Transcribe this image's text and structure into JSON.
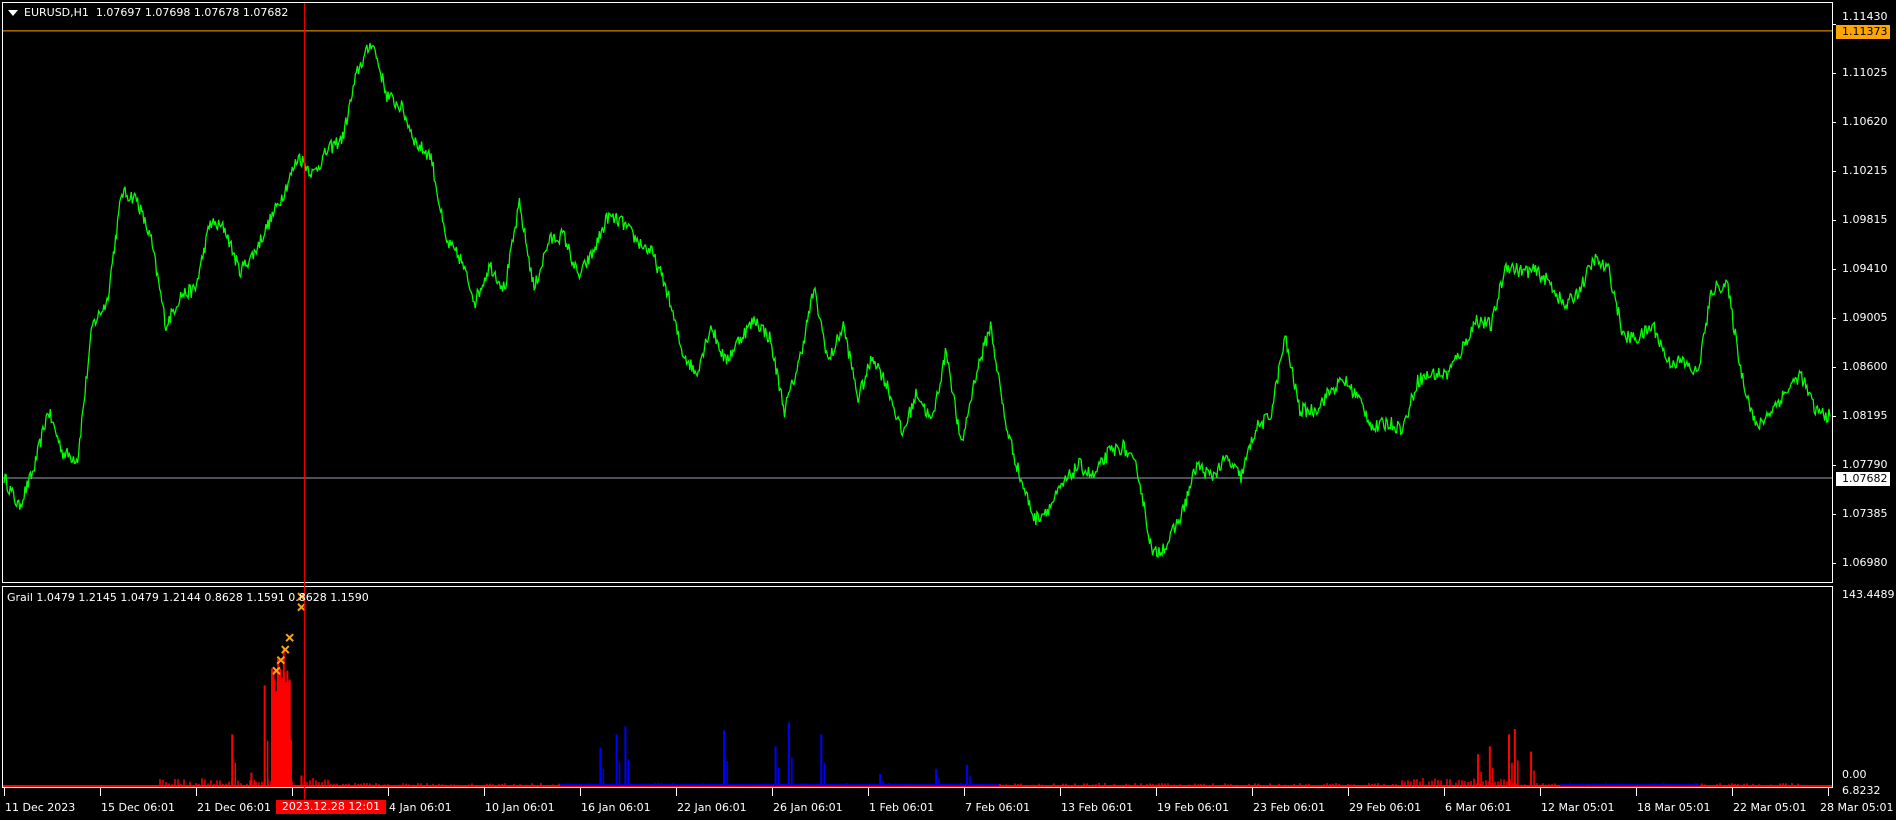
{
  "header": {
    "symbol": "EURUSD,H1",
    "ohlc": "1.07697 1.07698 1.07678 1.07682"
  },
  "indicator": {
    "label": "Grail 1.0479 1.2145 1.0479 1.2144 0.8628 1.1591 0.8628 1.1590",
    "max_label": "143.4489",
    "min_label": "0.00",
    "min_label2": "6.8232"
  },
  "colors": {
    "price": "#00ff00",
    "bear": "#ff0000",
    "bull": "#0000ff",
    "marker": "#ffa500",
    "crosshair": "#ff0000",
    "bid_line": "#9aa4b0",
    "max_line": "#ffa500"
  },
  "crosshair": {
    "time_label": "2023.12.28 12:01"
  },
  "price_tags": {
    "max_line": "1.11373",
    "bid": "1.07682"
  },
  "chart_data": [
    {
      "type": "line",
      "title": "EURUSD,H1",
      "timeframe": "H1",
      "ylim": [
        1.068,
        1.115
      ],
      "y_ticks": [
        "1.11430",
        "1.11025",
        "1.10620",
        "1.10215",
        "1.09815",
        "1.09410",
        "1.09005",
        "1.08600",
        "1.08195",
        "1.07790",
        "1.07385",
        "1.06980"
      ],
      "x_ticks": [
        "11 Dec 2023",
        "15 Dec 06:01",
        "21 Dec 06:01",
        "",
        "4 Jan 06:01",
        "10 Jan 06:01",
        "16 Jan 06:01",
        "22 Jan 06:01",
        "26 Jan 06:01",
        "1 Feb 06:01",
        "7 Feb 06:01",
        "13 Feb 06:01",
        "19 Feb 06:01",
        "23 Feb 06:01",
        "29 Feb 06:01",
        "6 Mar 06:01",
        "12 Mar 05:01",
        "18 Mar 05:01",
        "22 Mar 05:01",
        "28 Mar 05:01"
      ],
      "close": [
        1.0769,
        1.0744,
        1.0774,
        1.0824,
        1.0789,
        1.0784,
        1.0894,
        1.0914,
        1.1004,
        1.0999,
        1.0964,
        1.0894,
        1.0919,
        1.0924,
        1.0979,
        1.0974,
        1.0939,
        1.0954,
        1.0979,
        1.1004,
        1.1034,
        1.1019,
        1.1039,
        1.1049,
        1.1104,
        1.1129,
        1.1084,
        1.1074,
        1.1044,
        1.1034,
        1.0964,
        1.0949,
        1.0914,
        1.0944,
        1.0924,
        1.0994,
        1.0924,
        1.0964,
        1.0969,
        1.0934,
        1.0954,
        1.0984,
        1.0979,
        1.0964,
        1.0954,
        1.0924,
        1.0874,
        1.0854,
        1.0894,
        1.0864,
        1.0884,
        1.0899,
        1.0884,
        1.0824,
        1.0864,
        1.0924,
        1.0864,
        1.0894,
        1.0834,
        1.0869,
        1.0844,
        1.0804,
        1.0839,
        1.0814,
        1.0874,
        1.0794,
        1.0854,
        1.0894,
        1.0814,
        1.0769,
        1.0734,
        1.0744,
        1.0764,
        1.0779,
        1.0769,
        1.0789,
        1.0794,
        1.0774,
        1.0704,
        1.0714,
        1.0739,
        1.0779,
        1.0769,
        1.0784,
        1.0769,
        1.0809,
        1.0819,
        1.0884,
        1.0824,
        1.0824,
        1.0839,
        1.0849,
        1.0834,
        1.0809,
        1.0814,
        1.0809,
        1.0849,
        1.0854,
        1.0854,
        1.0874,
        1.0899,
        1.0894,
        1.0944,
        1.0939,
        1.0939,
        1.0929,
        1.0909,
        1.0924,
        1.0949,
        1.0939,
        1.0884,
        1.0884,
        1.0894,
        1.0864,
        1.0864,
        1.0854,
        1.0924,
        1.0929,
        1.0854,
        1.0809,
        1.0824,
        1.0839,
        1.0854,
        1.0824,
        1.0819
      ],
      "horizontal_lines": [
        1.11373,
        1.07682
      ],
      "crosshair_bar": 20.4
    },
    {
      "type": "bar",
      "title": "Grail",
      "ylim": [
        0,
        143.4489
      ],
      "bars_bear": [
        {
          "bar": 15.5,
          "value": 39
        },
        {
          "bar": 17.7,
          "value": 76
        },
        {
          "bar": 18.3,
          "value": 87
        },
        {
          "bar": 18.6,
          "value": 96
        },
        {
          "bar": 19.0,
          "value": 104
        },
        {
          "bar": 19.3,
          "value": 78
        },
        {
          "bar": 16.8,
          "value": 10
        },
        {
          "bar": 20.2,
          "value": 8
        },
        {
          "bar": 100.1,
          "value": 24
        },
        {
          "bar": 100.9,
          "value": 30
        },
        {
          "bar": 102.2,
          "value": 39
        },
        {
          "bar": 102.6,
          "value": 43
        },
        {
          "bar": 103.7,
          "value": 26
        }
      ],
      "bars_bull": [
        {
          "bar": 40.5,
          "value": 29
        },
        {
          "bar": 41.6,
          "value": 39
        },
        {
          "bar": 42.2,
          "value": 45
        },
        {
          "bar": 48.9,
          "value": 42
        },
        {
          "bar": 52.4,
          "value": 30
        },
        {
          "bar": 53.3,
          "value": 48
        },
        {
          "bar": 55.5,
          "value": 39
        },
        {
          "bar": 59.5,
          "value": 9
        },
        {
          "bar": 63.3,
          "value": 13
        },
        {
          "bar": 65.4,
          "value": 16
        }
      ],
      "markers": [
        {
          "bar": 18.5,
          "value": 87
        },
        {
          "bar": 18.8,
          "value": 95
        },
        {
          "bar": 19.1,
          "value": 103
        },
        {
          "bar": 19.4,
          "value": 112
        },
        {
          "bar": 20.2,
          "value": 135
        },
        {
          "bar": 20.2,
          "value": 143
        }
      ]
    }
  ]
}
